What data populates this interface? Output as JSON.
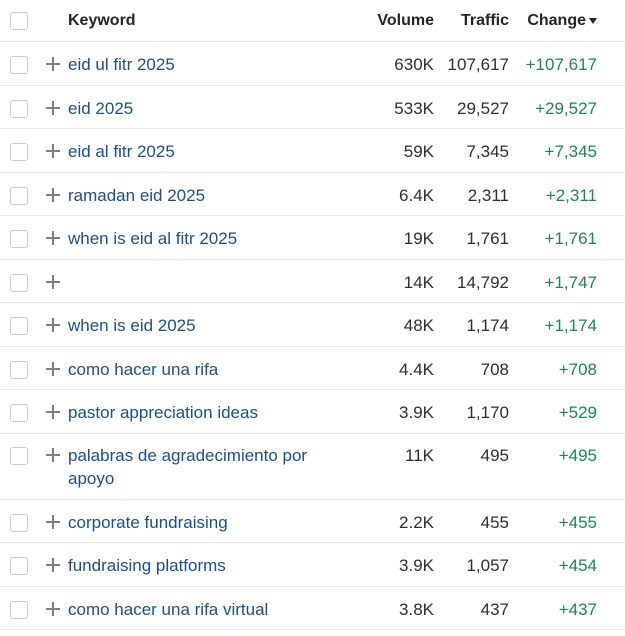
{
  "header": {
    "keyword": "Keyword",
    "volume": "Volume",
    "traffic": "Traffic",
    "change": "Change"
  },
  "rows": [
    {
      "keyword": "eid ul fitr 2025",
      "volume": "630K",
      "traffic": "107,617",
      "change": "+107,617"
    },
    {
      "keyword": "eid 2025",
      "volume": "533K",
      "traffic": "29,527",
      "change": "+29,527"
    },
    {
      "keyword": "eid al fitr 2025",
      "volume": "59K",
      "traffic": "7,345",
      "change": "+7,345"
    },
    {
      "keyword": "ramadan eid 2025",
      "volume": "6.4K",
      "traffic": "2,311",
      "change": "+2,311"
    },
    {
      "keyword": "when is eid al fitr 2025",
      "volume": "19K",
      "traffic": "1,761",
      "change": "+1,761"
    },
    {
      "keyword": "",
      "volume": "14K",
      "traffic": "14,792",
      "change": "+1,747"
    },
    {
      "keyword": "when is eid 2025",
      "volume": "48K",
      "traffic": "1,174",
      "change": "+1,174"
    },
    {
      "keyword": "como hacer una rifa",
      "volume": "4.4K",
      "traffic": "708",
      "change": "+708"
    },
    {
      "keyword": "pastor appreciation ideas",
      "volume": "3.9K",
      "traffic": "1,170",
      "change": "+529"
    },
    {
      "keyword": "palabras de agradecimiento por apoyo",
      "volume": "11K",
      "traffic": "495",
      "change": "+495"
    },
    {
      "keyword": "corporate fundraising",
      "volume": "2.2K",
      "traffic": "455",
      "change": "+455"
    },
    {
      "keyword": "fundraising platforms",
      "volume": "3.9K",
      "traffic": "1,057",
      "change": "+454"
    },
    {
      "keyword": "como hacer una rifa virtual",
      "volume": "3.8K",
      "traffic": "437",
      "change": "+437"
    }
  ],
  "colors": {
    "keyword_link": "#1a4f8c",
    "change_positive": "#1a8a4a"
  },
  "icons": [
    "checkbox-icon",
    "plus-icon",
    "caret-down-icon"
  ]
}
